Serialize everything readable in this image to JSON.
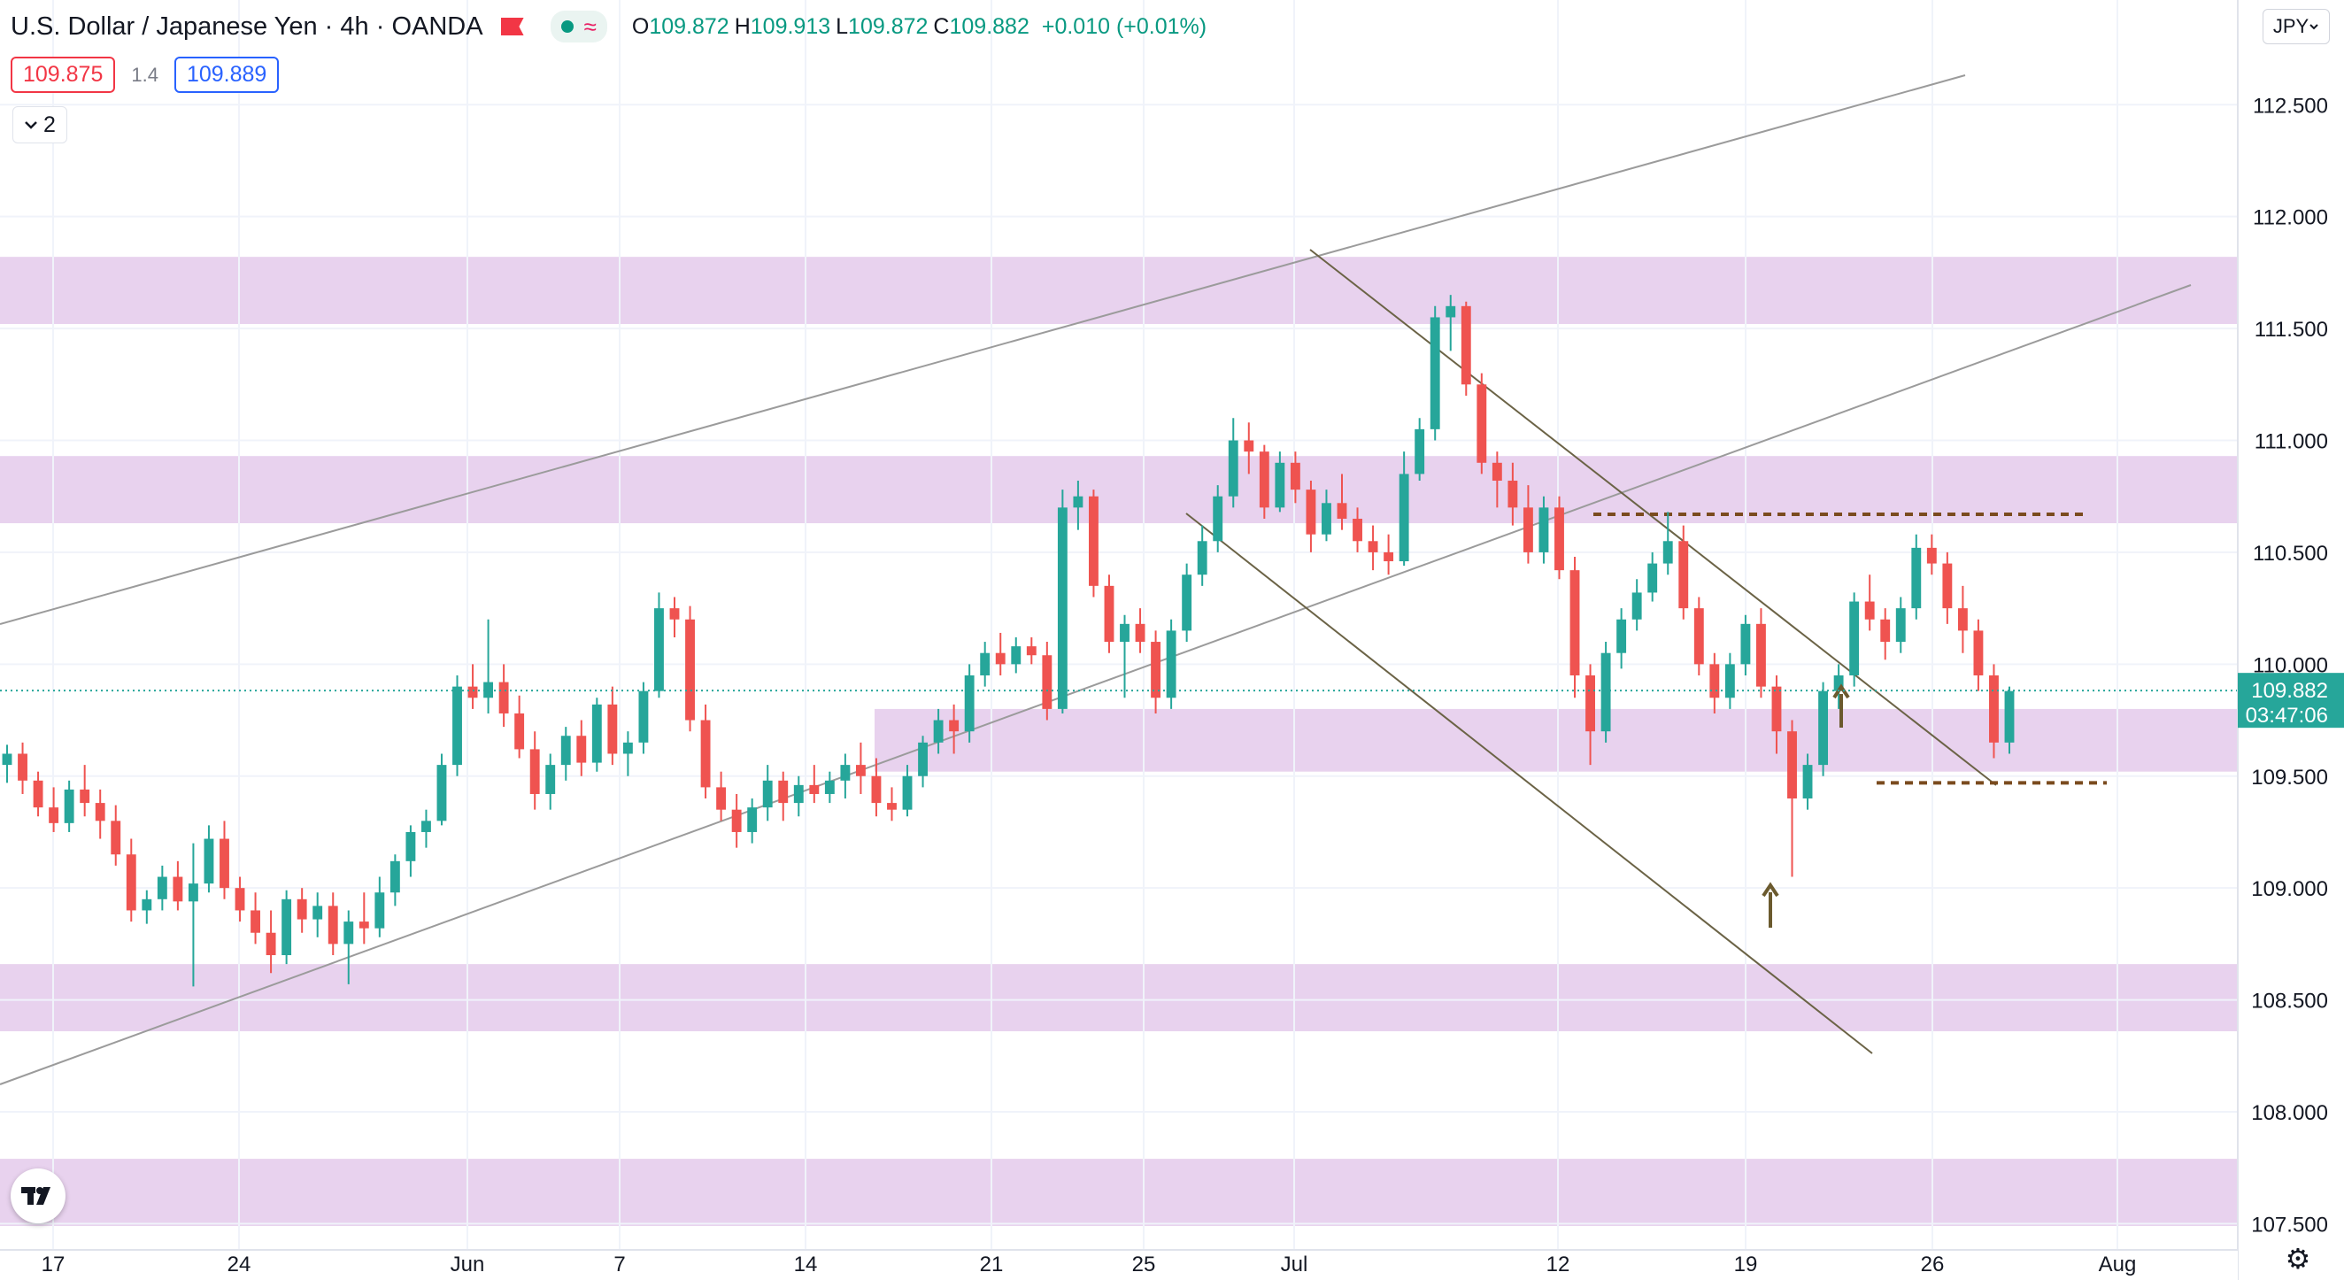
{
  "header": {
    "symbol_title": "U.S. Dollar / Japanese Yen",
    "interval": "4h",
    "source": "OANDA",
    "approx_icon": "≈",
    "open_key": "O",
    "open": "109.872",
    "high_key": "H",
    "high": "109.913",
    "low_key": "L",
    "low": "109.872",
    "close_key": "C",
    "close": "109.882",
    "change": "+0.010 (+0.01%)"
  },
  "bid_ask": {
    "bid": "109.875",
    "spread": "1.4",
    "ask": "109.889"
  },
  "indicators_toggle": {
    "count": "2"
  },
  "currency_button": {
    "label": "JPY"
  },
  "price_tag": {
    "price": "109.882",
    "countdown": "03:47:06"
  },
  "icons": {
    "collapse": "chevron-down-icon",
    "flag": "flag-icon",
    "logo": "tradingview-logo-icon",
    "settings": "gear-icon"
  },
  "colors": {
    "up": "#26a69a",
    "down": "#ef5350",
    "zone": "#e8d2ee",
    "trendline": "#9b9b9b",
    "channel": "#6b6346",
    "level": "#7a4b1e",
    "arrow": "#6b5a2e"
  },
  "chart_data": {
    "type": "candlestick",
    "ylim": [
      107.47,
      112.77
    ],
    "y_ticks": [
      "112.500",
      "112.000",
      "111.500",
      "111.000",
      "110.500",
      "110.000",
      "109.500",
      "109.000",
      "108.500",
      "108.000",
      "107.500"
    ],
    "x_ticks": [
      "17",
      "24",
      "Jun",
      "7",
      "14",
      "21",
      "25",
      "Jul",
      "12",
      "19",
      "26",
      "Aug"
    ],
    "zones": [
      {
        "from": 111.52,
        "to": 111.82
      },
      {
        "from": 110.63,
        "to": 110.93
      },
      {
        "from": 109.52,
        "to": 109.8
      },
      {
        "from": 108.36,
        "to": 108.66
      },
      {
        "from": 107.49,
        "to": 107.79
      }
    ],
    "levels": [
      110.67,
      109.47
    ],
    "last_price": 109.882,
    "candles": [
      [
        109.55,
        109.64,
        109.47,
        109.6
      ],
      [
        109.6,
        109.65,
        109.42,
        109.48
      ],
      [
        109.48,
        109.52,
        109.32,
        109.36
      ],
      [
        109.36,
        109.45,
        109.25,
        109.29
      ],
      [
        109.29,
        109.48,
        109.25,
        109.44
      ],
      [
        109.44,
        109.55,
        109.32,
        109.38
      ],
      [
        109.38,
        109.44,
        109.22,
        109.3
      ],
      [
        109.3,
        109.37,
        109.1,
        109.15
      ],
      [
        109.15,
        109.22,
        108.85,
        108.9
      ],
      [
        108.9,
        108.99,
        108.84,
        108.95
      ],
      [
        108.95,
        109.1,
        108.9,
        109.05
      ],
      [
        109.05,
        109.12,
        108.9,
        108.94
      ],
      [
        108.94,
        109.2,
        108.56,
        109.02
      ],
      [
        109.02,
        109.28,
        108.98,
        109.22
      ],
      [
        109.22,
        109.3,
        108.95,
        109.0
      ],
      [
        109.0,
        109.05,
        108.85,
        108.9
      ],
      [
        108.9,
        108.98,
        108.75,
        108.8
      ],
      [
        108.8,
        108.9,
        108.62,
        108.7
      ],
      [
        108.7,
        108.99,
        108.66,
        108.95
      ],
      [
        108.95,
        109.0,
        108.8,
        108.86
      ],
      [
        108.86,
        108.98,
        108.78,
        108.92
      ],
      [
        108.92,
        108.98,
        108.7,
        108.75
      ],
      [
        108.75,
        108.9,
        108.57,
        108.85
      ],
      [
        108.85,
        108.98,
        108.75,
        108.82
      ],
      [
        108.82,
        109.05,
        108.78,
        108.98
      ],
      [
        108.98,
        109.15,
        108.92,
        109.12
      ],
      [
        109.12,
        109.28,
        109.05,
        109.25
      ],
      [
        109.25,
        109.35,
        109.18,
        109.3
      ],
      [
        109.3,
        109.6,
        109.28,
        109.55
      ],
      [
        109.55,
        109.95,
        109.5,
        109.9
      ],
      [
        109.9,
        110.0,
        109.8,
        109.85
      ],
      [
        109.85,
        110.2,
        109.78,
        109.92
      ],
      [
        109.92,
        110.0,
        109.72,
        109.78
      ],
      [
        109.78,
        109.86,
        109.58,
        109.62
      ],
      [
        109.62,
        109.7,
        109.35,
        109.42
      ],
      [
        109.42,
        109.6,
        109.35,
        109.55
      ],
      [
        109.55,
        109.72,
        109.48,
        109.68
      ],
      [
        109.68,
        109.75,
        109.5,
        109.56
      ],
      [
        109.56,
        109.85,
        109.52,
        109.82
      ],
      [
        109.82,
        109.9,
        109.55,
        109.6
      ],
      [
        109.6,
        109.7,
        109.5,
        109.65
      ],
      [
        109.65,
        109.92,
        109.6,
        109.88
      ],
      [
        109.88,
        110.32,
        109.85,
        110.25
      ],
      [
        110.25,
        110.3,
        110.12,
        110.2
      ],
      [
        110.2,
        110.26,
        109.7,
        109.75
      ],
      [
        109.75,
        109.82,
        109.4,
        109.45
      ],
      [
        109.45,
        109.52,
        109.3,
        109.35
      ],
      [
        109.35,
        109.42,
        109.18,
        109.25
      ],
      [
        109.25,
        109.4,
        109.2,
        109.36
      ],
      [
        109.36,
        109.55,
        109.3,
        109.48
      ],
      [
        109.48,
        109.52,
        109.3,
        109.38
      ],
      [
        109.38,
        109.5,
        109.32,
        109.46
      ],
      [
        109.46,
        109.55,
        109.38,
        109.42
      ],
      [
        109.42,
        109.52,
        109.38,
        109.48
      ],
      [
        109.48,
        109.6,
        109.4,
        109.55
      ],
      [
        109.55,
        109.65,
        109.42,
        109.5
      ],
      [
        109.5,
        109.58,
        109.32,
        109.38
      ],
      [
        109.38,
        109.45,
        109.3,
        109.35
      ],
      [
        109.35,
        109.55,
        109.32,
        109.5
      ],
      [
        109.5,
        109.68,
        109.45,
        109.65
      ],
      [
        109.65,
        109.8,
        109.6,
        109.75
      ],
      [
        109.75,
        109.82,
        109.6,
        109.7
      ],
      [
        109.7,
        110.0,
        109.65,
        109.95
      ],
      [
        109.95,
        110.1,
        109.9,
        110.05
      ],
      [
        110.05,
        110.14,
        109.95,
        110.0
      ],
      [
        110.0,
        110.12,
        109.96,
        110.08
      ],
      [
        110.08,
        110.12,
        110.0,
        110.04
      ],
      [
        110.04,
        110.1,
        109.75,
        109.8
      ],
      [
        109.8,
        110.78,
        109.78,
        110.7
      ],
      [
        110.7,
        110.82,
        110.6,
        110.75
      ],
      [
        110.75,
        110.78,
        110.3,
        110.35
      ],
      [
        110.35,
        110.4,
        110.05,
        110.1
      ],
      [
        110.1,
        110.22,
        109.85,
        110.18
      ],
      [
        110.18,
        110.25,
        110.05,
        110.1
      ],
      [
        110.1,
        110.15,
        109.78,
        109.85
      ],
      [
        109.85,
        110.2,
        109.8,
        110.15
      ],
      [
        110.15,
        110.45,
        110.1,
        110.4
      ],
      [
        110.4,
        110.62,
        110.35,
        110.55
      ],
      [
        110.55,
        110.8,
        110.5,
        110.75
      ],
      [
        110.75,
        111.1,
        110.7,
        111.0
      ],
      [
        111.0,
        111.08,
        110.85,
        110.95
      ],
      [
        110.95,
        110.98,
        110.65,
        110.7
      ],
      [
        110.7,
        110.95,
        110.68,
        110.9
      ],
      [
        110.9,
        110.95,
        110.72,
        110.78
      ],
      [
        110.78,
        110.82,
        110.5,
        110.58
      ],
      [
        110.58,
        110.78,
        110.55,
        110.72
      ],
      [
        110.72,
        110.85,
        110.6,
        110.65
      ],
      [
        110.65,
        110.7,
        110.5,
        110.55
      ],
      [
        110.55,
        110.62,
        110.42,
        110.5
      ],
      [
        110.5,
        110.58,
        110.4,
        110.46
      ],
      [
        110.46,
        110.95,
        110.44,
        110.85
      ],
      [
        110.85,
        111.1,
        110.82,
        111.05
      ],
      [
        111.05,
        111.6,
        111.0,
        111.55
      ],
      [
        111.55,
        111.65,
        111.4,
        111.6
      ],
      [
        111.6,
        111.62,
        111.2,
        111.25
      ],
      [
        111.25,
        111.3,
        110.85,
        110.9
      ],
      [
        110.9,
        110.95,
        110.7,
        110.82
      ],
      [
        110.82,
        110.9,
        110.62,
        110.7
      ],
      [
        110.7,
        110.8,
        110.45,
        110.5
      ],
      [
        110.5,
        110.75,
        110.45,
        110.7
      ],
      [
        110.7,
        110.75,
        110.38,
        110.42
      ],
      [
        110.42,
        110.48,
        109.85,
        109.95
      ],
      [
        109.95,
        110.0,
        109.55,
        109.7
      ],
      [
        109.7,
        110.1,
        109.65,
        110.05
      ],
      [
        110.05,
        110.25,
        109.98,
        110.2
      ],
      [
        110.2,
        110.38,
        110.15,
        110.32
      ],
      [
        110.32,
        110.5,
        110.28,
        110.45
      ],
      [
        110.45,
        110.68,
        110.4,
        110.55
      ],
      [
        110.55,
        110.62,
        110.2,
        110.25
      ],
      [
        110.25,
        110.3,
        109.95,
        110.0
      ],
      [
        110.0,
        110.05,
        109.78,
        109.85
      ],
      [
        109.85,
        110.05,
        109.8,
        110.0
      ],
      [
        110.0,
        110.22,
        109.95,
        110.18
      ],
      [
        110.18,
        110.25,
        109.85,
        109.9
      ],
      [
        109.9,
        109.95,
        109.6,
        109.7
      ],
      [
        109.7,
        109.75,
        109.05,
        109.4
      ],
      [
        109.4,
        109.6,
        109.35,
        109.55
      ],
      [
        109.55,
        109.92,
        109.5,
        109.88
      ],
      [
        109.88,
        110.0,
        109.8,
        109.95
      ],
      [
        109.95,
        110.32,
        109.9,
        110.28
      ],
      [
        110.28,
        110.4,
        110.15,
        110.2
      ],
      [
        110.2,
        110.25,
        110.02,
        110.1
      ],
      [
        110.1,
        110.3,
        110.05,
        110.25
      ],
      [
        110.25,
        110.58,
        110.2,
        110.52
      ],
      [
        110.52,
        110.58,
        110.4,
        110.45
      ],
      [
        110.45,
        110.5,
        110.18,
        110.25
      ],
      [
        110.25,
        110.35,
        110.05,
        110.15
      ],
      [
        110.15,
        110.2,
        109.88,
        109.95
      ],
      [
        109.95,
        110.0,
        109.58,
        109.65
      ],
      [
        109.65,
        109.9,
        109.6,
        109.88
      ]
    ]
  }
}
